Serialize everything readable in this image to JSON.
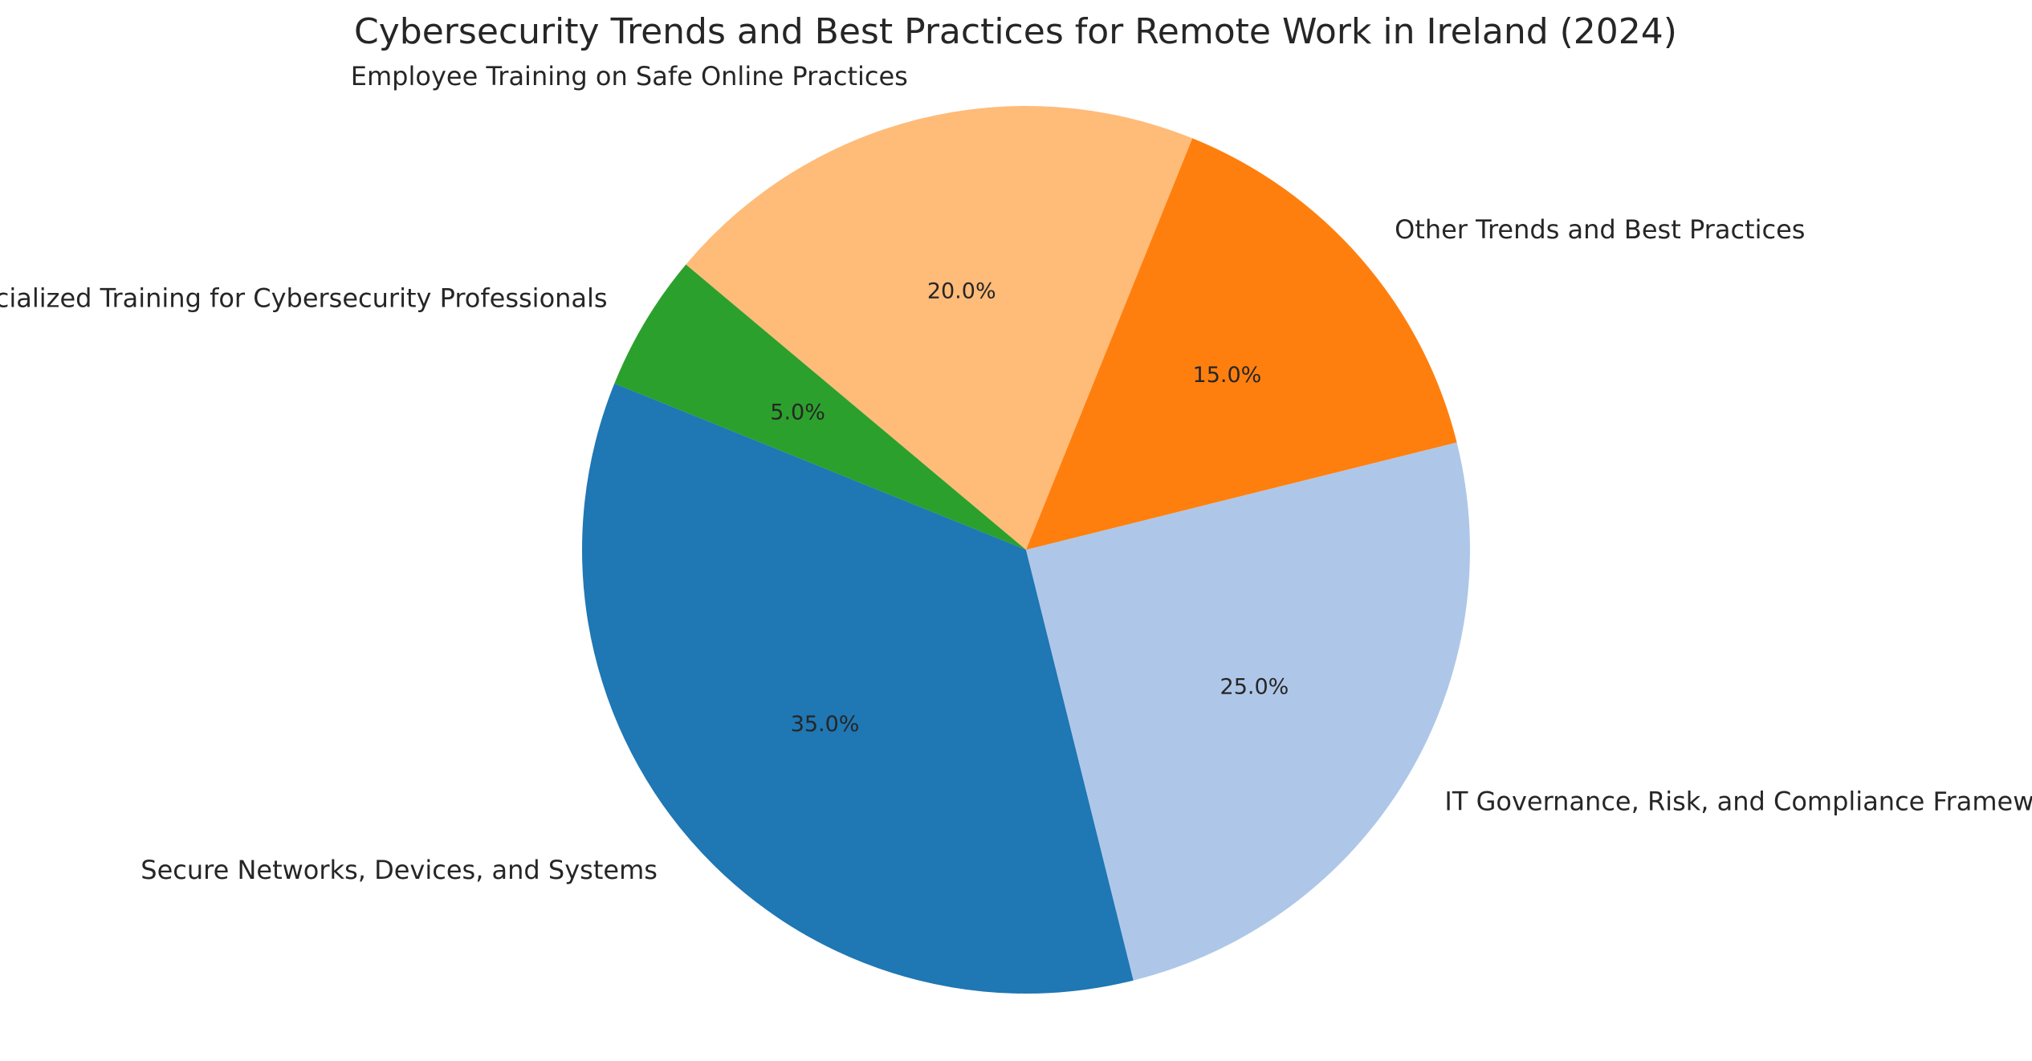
{
  "chart_data": {
    "type": "pie",
    "title": "Cybersecurity Trends and Best Practices for Remote Work in Ireland (2024)",
    "start_angle_deg": 140,
    "direction": "counterclockwise",
    "slices": [
      {
        "label": "Specialized Training for Cybersecurity Professionals",
        "value": 5.0,
        "pct_label": "5.0%",
        "color": "#2ca02c"
      },
      {
        "label": "Secure Networks, Devices, and Systems",
        "value": 35.0,
        "pct_label": "35.0%",
        "color": "#1f77b4"
      },
      {
        "label": "IT Governance, Risk, and Compliance Frameworks",
        "value": 25.0,
        "pct_label": "25.0%",
        "color": "#aec7e8"
      },
      {
        "label": "Other Trends and Best Practices",
        "value": 15.0,
        "pct_label": "15.0%",
        "color": "#ff7f0e"
      },
      {
        "label": "Employee Training on Safe Online Practices",
        "value": 20.0,
        "pct_label": "20.0%",
        "color": "#ffbb78"
      }
    ]
  }
}
